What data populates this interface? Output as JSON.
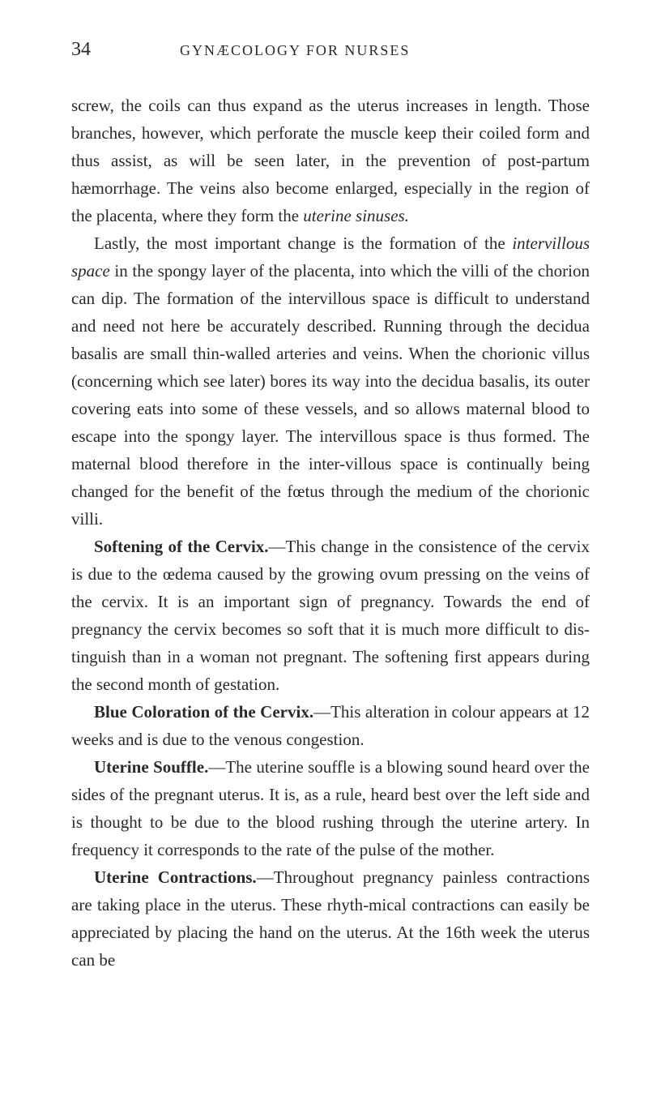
{
  "page": {
    "number": "34",
    "running_title": "GYNÆCOLOGY FOR NURSES"
  },
  "paragraphs": {
    "p1_part1": "screw, the coils can thus expand as the uterus increases in length. Those branches, however, which perforate the muscle keep their coiled form and thus assist, as will be seen later, in the prevention of post-partum hæmorrhage. The veins also become enlarged, especially in the region of the placenta, where they form the ",
    "p1_italic1": "uterine sinuses.",
    "p2_part1": "Lastly, the most important change is the formation of the ",
    "p2_italic1": "intervillous space",
    "p2_part2": " in the spongy layer of the placenta, into which the villi of the chorion can dip. The formation of the intervillous space is difficult to understand and need not here be accurately described. Running through the decidua basalis are small thin-walled arteries and veins. When the chorionic villus (concerning which see later) bores its way into the decidua basalis, its outer covering eats into some of these vessels, and so allows maternal blood to escape into the spongy layer. The intervillous space is thus formed. The maternal blood therefore in the inter-villous space is continually being changed for the benefit of the fœtus through the medium of the chorionic villi.",
    "p3_bold": "Softening of the Cervix.",
    "p3_part1": "—This change in the consistence of the cervix is due to the œdema caused by the growing ovum pressing on the veins of the cervix. It is an important sign of pregnancy. Towards the end of pregnancy the cervix becomes so soft that it is much more difficult to dis-tinguish than in a woman not pregnant. The softening first appears during the second month of gestation.",
    "p4_bold": "Blue Coloration of the Cervix.",
    "p4_part1": "—This alteration in colour appears at 12 weeks and is due to the venous congestion.",
    "p5_bold": "Uterine Souffle.",
    "p5_part1": "—The uterine souffle is a blowing sound heard over the sides of the pregnant uterus. It is, as a rule, heard best over the left side and is thought to be due to the blood rushing through the uterine artery. In frequency it corresponds to the rate of the pulse of the mother.",
    "p6_bold": "Uterine Contractions.",
    "p6_part1": "—Throughout pregnancy painless contractions are taking place in the uterus. These rhyth-mical contractions can easily be appreciated by placing the hand on the uterus. At the 16th week the uterus can be"
  },
  "style": {
    "background_color": "#ffffff",
    "text_color": "#2a2a2a",
    "body_fontsize": 21,
    "header_number_fontsize": 24,
    "header_title_fontsize": 18,
    "line_height": 1.62
  }
}
